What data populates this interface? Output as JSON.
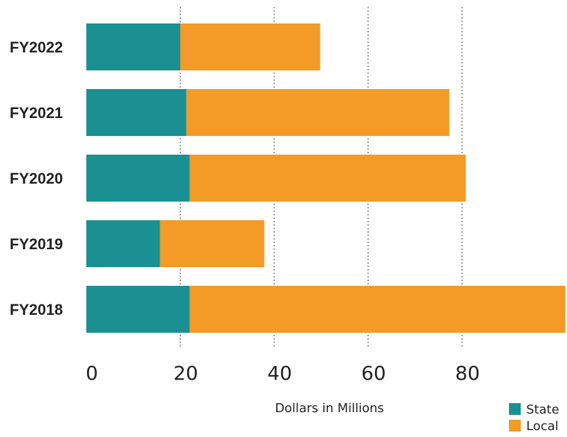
{
  "chart_data": {
    "type": "bar",
    "orientation": "horizontal",
    "stacked": true,
    "categories": [
      "FY2022",
      "FY2021",
      "FY2020",
      "FY2019",
      "FY2018"
    ],
    "series": [
      {
        "name": "State",
        "color": "#1a9093",
        "values": [
          20.0,
          21.3,
          22.0,
          15.7,
          22.0
        ]
      },
      {
        "name": "Local",
        "color": "#f39a27",
        "values": [
          29.8,
          56.0,
          58.8,
          22.2,
          80.0
        ]
      }
    ],
    "xticks": [
      "0",
      "20",
      "40",
      "60",
      "80"
    ],
    "xlim": [
      0,
      102
    ],
    "xlabel": "Dollars in Millions",
    "grid": "vertical dotted",
    "legend_position": "bottom-right"
  }
}
